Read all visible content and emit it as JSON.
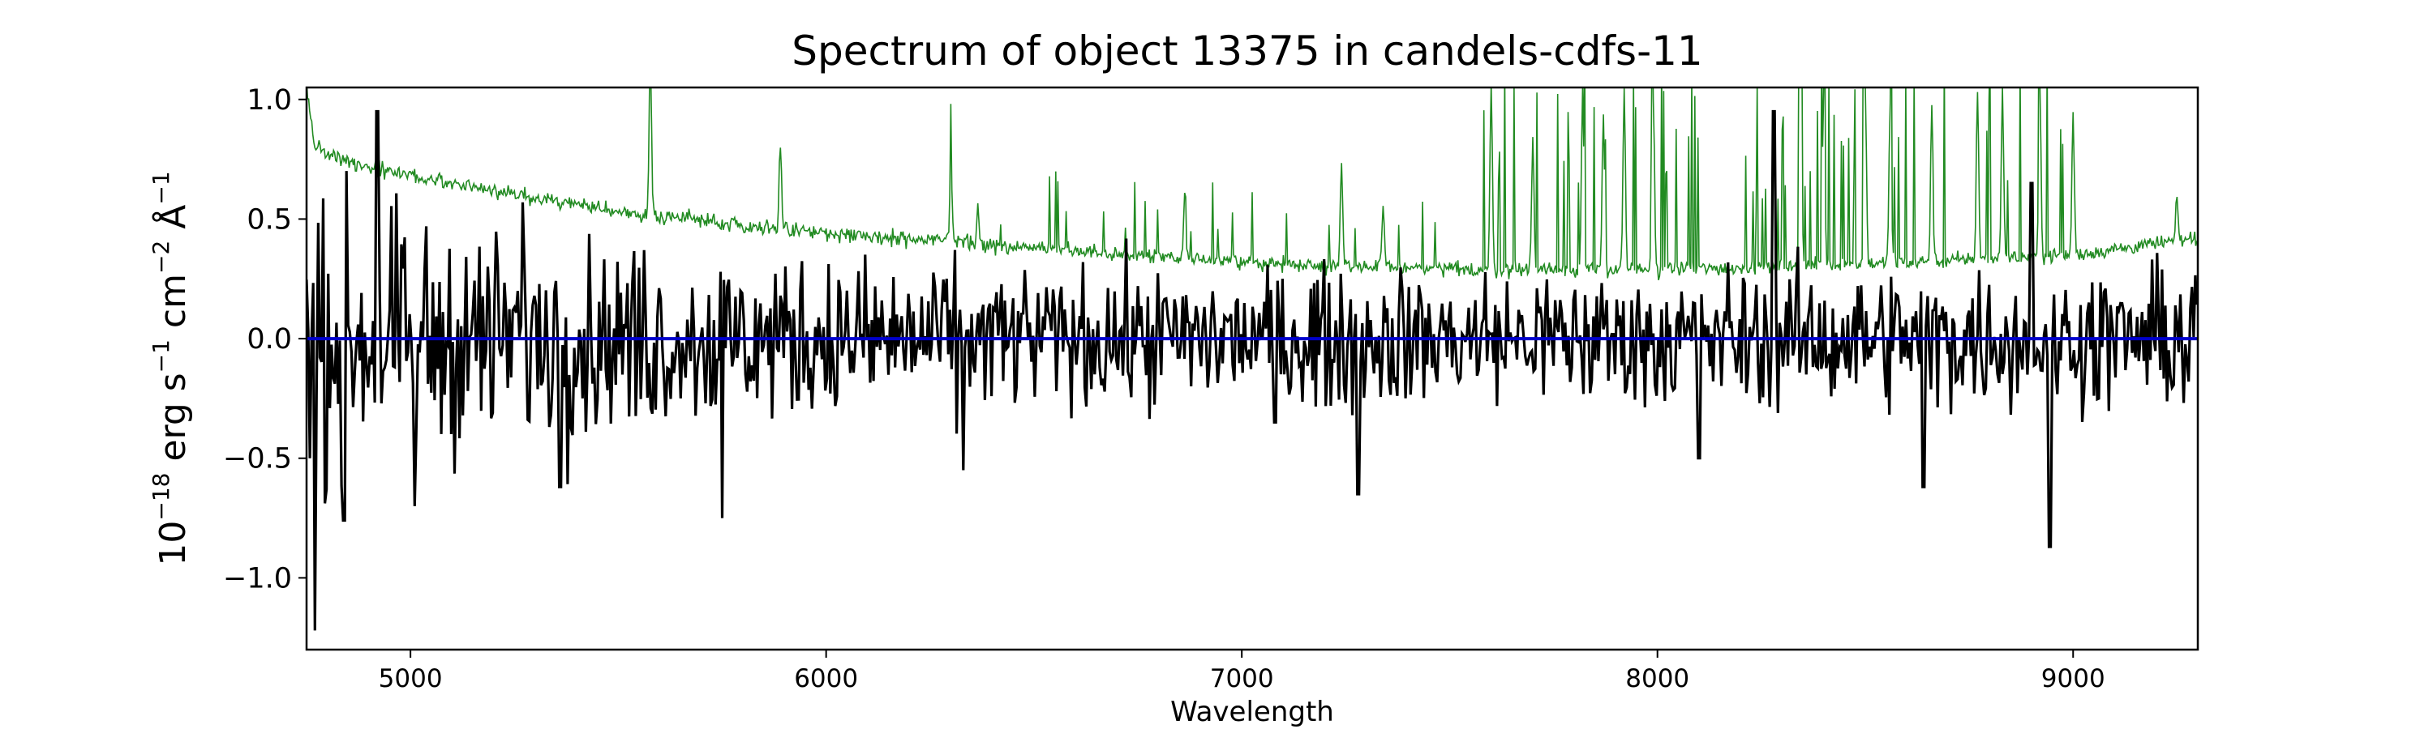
{
  "chart_data": {
    "type": "line",
    "title": "Spectrum of object 13375 in candels-cdfs-11",
    "xlabel": "Wavelength",
    "ylabel": {
      "base": "10",
      "exp_base": "−18",
      "unit1": " erg s",
      "exp1": "−1",
      "unit2": " cm",
      "exp2": "−2",
      "unit3": " Å",
      "exp3": "−1"
    },
    "xlim": [
      4750,
      9300
    ],
    "ylim": [
      -1.3,
      1.05
    ],
    "xticks": [
      5000,
      6000,
      7000,
      8000,
      9000
    ],
    "xtick_labels": [
      "5000",
      "6000",
      "7000",
      "8000",
      "9000"
    ],
    "yticks": [
      -1.0,
      -0.5,
      0.0,
      0.5,
      1.0
    ],
    "ytick_labels": [
      "−1.0",
      "−0.5",
      "0.0",
      "0.5",
      "1.0"
    ],
    "grid": false,
    "series": [
      {
        "role": "error",
        "color": "#228b22",
        "continuum": [
          [
            4750,
            1.05
          ],
          [
            4770,
            0.8
          ],
          [
            4850,
            0.74
          ],
          [
            5000,
            0.68
          ],
          [
            5200,
            0.62
          ],
          [
            5500,
            0.53
          ],
          [
            6000,
            0.44
          ],
          [
            6500,
            0.38
          ],
          [
            7000,
            0.32
          ],
          [
            7500,
            0.29
          ],
          [
            8000,
            0.29
          ],
          [
            8300,
            0.3
          ],
          [
            8600,
            0.32
          ],
          [
            9000,
            0.35
          ],
          [
            9300,
            0.42
          ]
        ],
        "noise": 0.015,
        "lines": [
          [
            5577,
            1.2
          ],
          [
            5890,
            0.82
          ],
          [
            6300,
            0.72
          ],
          [
            6365,
            0.55
          ],
          [
            6863,
            0.62
          ],
          [
            7240,
            0.75
          ],
          [
            7340,
            0.55
          ],
          [
            7600,
            1.05
          ],
          [
            7700,
            0.85
          ],
          [
            7820,
            1.05
          ],
          [
            7870,
            0.95
          ],
          [
            7920,
            1.05
          ],
          [
            7990,
            1.0
          ],
          [
            8345,
            1.05
          ],
          [
            8400,
            1.05
          ],
          [
            8500,
            1.05
          ],
          [
            8560,
            1.0
          ],
          [
            8660,
            0.98
          ],
          [
            8770,
            1.05
          ],
          [
            8830,
            1.05
          ],
          [
            8920,
            1.05
          ],
          [
            9000,
            0.95
          ],
          [
            9250,
            0.58
          ]
        ]
      },
      {
        "role": "flux",
        "color": "#000000",
        "mean": 0.0,
        "sigma": 0.14,
        "spikes": [
          [
            4770,
            -1.22
          ],
          [
            4920,
            0.95
          ],
          [
            4840,
            -0.76
          ],
          [
            5010,
            -0.7
          ],
          [
            5270,
            0.57
          ],
          [
            5360,
            -0.62
          ],
          [
            5750,
            -0.75
          ],
          [
            6330,
            -0.55
          ],
          [
            7280,
            -0.65
          ],
          [
            7080,
            -0.35
          ],
          [
            8100,
            -0.5
          ],
          [
            8280,
            0.95
          ],
          [
            8900,
            0.65
          ],
          [
            8945,
            -0.87
          ],
          [
            8640,
            -0.62
          ]
        ]
      },
      {
        "role": "model",
        "color": "#0000cc",
        "value": 0.0
      }
    ]
  }
}
